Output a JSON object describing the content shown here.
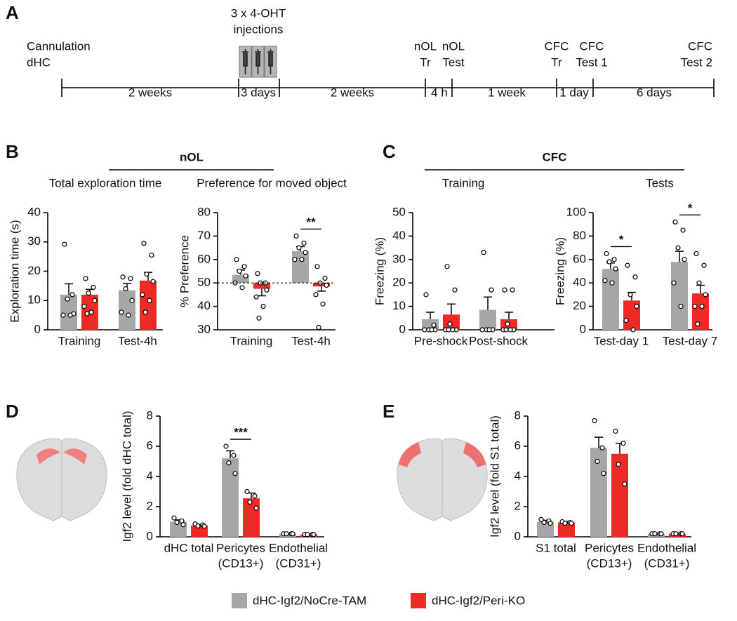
{
  "timeline": {
    "panel": "A",
    "events": [
      [
        "Cannulation",
        "dHC"
      ],
      [
        "3 x 4-OHT",
        "injections"
      ],
      [
        "nOL",
        "Tr"
      ],
      [
        "nOL",
        "Test"
      ],
      [
        "CFC",
        "Tr"
      ],
      [
        "CFC",
        "Test 1"
      ],
      [
        "CFC",
        "Test 2"
      ]
    ],
    "intervals": [
      "2 weeks",
      "3 days",
      "2 weeks",
      "4 h",
      "1 week",
      "1 day",
      "6 days"
    ]
  },
  "legend": [
    {
      "name": "dHC-Igf2/NoCre-TAM",
      "color": "#a6a6a6"
    },
    {
      "name": "dHC-Igf2/Peri-KO",
      "color": "#ee2a24"
    }
  ],
  "chart_data": [
    {
      "type": "bar",
      "panel": "B",
      "group_title": "nOL",
      "title": "Total exploration time",
      "ylabel": "Exploration time (s)",
      "categories": [
        [
          "Training"
        ],
        [
          "Test-4h"
        ]
      ],
      "ylim": [
        0,
        40
      ],
      "yticks": [
        0,
        10,
        20,
        30,
        40
      ],
      "series": [
        {
          "values": [
            12,
            13.5
          ],
          "errors": [
            3.7,
            2.3
          ],
          "points": [
            [
              29.2,
              12,
              10.5,
              5.5,
              5,
              5
            ],
            [
              18,
              17.5,
              14,
              10,
              6,
              5
            ]
          ]
        },
        {
          "values": [
            12,
            16.8
          ],
          "errors": [
            1.8,
            2.8
          ],
          "points": [
            [
              17.5,
              14.5,
              12.5,
              10,
              8,
              6,
              5.5
            ],
            [
              29.5,
              25.5,
              19,
              16.5,
              12,
              10,
              6
            ]
          ]
        }
      ],
      "significance": [
        null,
        null
      ]
    },
    {
      "type": "bar",
      "title": "Preference for moved object",
      "ylabel": "% Preference",
      "categories": [
        [
          "Training"
        ],
        [
          "Test-4h"
        ]
      ],
      "ylim": [
        30,
        80
      ],
      "yticks": [
        30,
        40,
        50,
        60,
        70,
        80
      ],
      "baseline": 50,
      "series": [
        {
          "values": [
            53.5,
            63.5
          ],
          "errors": [
            2,
            2
          ],
          "points": [
            [
              60,
              57,
              55,
              53,
              50,
              48
            ],
            [
              70,
              67,
              65,
              63,
              60,
              60
            ]
          ]
        },
        {
          "values": [
            47.5,
            48.5
          ],
          "errors": [
            3,
            2
          ],
          "points": [
            [
              54,
              50,
              50,
              47,
              44,
              40,
              35
            ],
            [
              57,
              52,
              50,
              49,
              45,
              41,
              31
            ]
          ]
        }
      ],
      "significance": [
        null,
        "**"
      ]
    },
    {
      "type": "bar",
      "panel": "C",
      "group_title": "CFC",
      "title": "Training",
      "ylabel": "Freezing (%)",
      "categories": [
        [
          "Pre-shock"
        ],
        [
          "Post-shock"
        ]
      ],
      "ylim": [
        0,
        50
      ],
      "yticks": [
        0,
        10,
        20,
        30,
        40,
        50
      ],
      "series": [
        {
          "values": [
            4.5,
            8.5
          ],
          "errors": [
            3,
            5.5
          ],
          "points": [
            [
              15,
              2,
              0,
              0,
              0,
              0
            ],
            [
              33,
              17,
              0,
              0,
              0,
              0
            ]
          ]
        },
        {
          "values": [
            6.5,
            4.5
          ],
          "errors": [
            4.5,
            3
          ],
          "points": [
            [
              27,
              17,
              2.5,
              0,
              0,
              0,
              0
            ],
            [
              17,
              17,
              2.5,
              0,
              0,
              0,
              0
            ]
          ]
        }
      ],
      "significance": [
        null,
        null
      ]
    },
    {
      "type": "bar",
      "title": "Tests",
      "ylabel": "Freezing (%)",
      "categories": [
        [
          "Test-day 1"
        ],
        [
          "Test-day 7"
        ]
      ],
      "ylim": [
        0,
        100
      ],
      "yticks": [
        0,
        20,
        40,
        60,
        80,
        100
      ],
      "series": [
        {
          "values": [
            52,
            58
          ],
          "errors": [
            5,
            9
          ],
          "points": [
            [
              65,
              60,
              58,
              52,
              42,
              40
            ],
            [
              92,
              85,
              70,
              60,
              40,
              20
            ]
          ]
        },
        {
          "values": [
            25,
            31
          ],
          "errors": [
            7,
            7
          ],
          "points": [
            [
              55,
              45,
              30,
              20,
              8,
              0
            ],
            [
              65,
              55,
              40,
              30,
              20,
              20,
              5
            ]
          ]
        }
      ],
      "significance": [
        "*",
        "*"
      ]
    },
    {
      "type": "bar",
      "panel": "D",
      "ylabel": "Igf2 level (fold dHC total)",
      "categories": [
        [
          "dHC total"
        ],
        [
          "Pericytes",
          "(CD13+)"
        ],
        [
          "Endothelial",
          "(CD31+)"
        ]
      ],
      "ylim": [
        0,
        8
      ],
      "yticks": [
        0,
        2,
        4,
        6,
        8
      ],
      "series": [
        {
          "values": [
            1.0,
            5.2,
            0.2
          ],
          "errors": [
            0.12,
            0.5,
            0.02
          ],
          "points": [
            [
              1.25,
              1.05,
              0.95,
              0.8
            ],
            [
              6.0,
              5.4,
              4.9,
              4.2
            ],
            [
              0.2,
              0.2,
              0.2,
              0.2
            ]
          ]
        },
        {
          "values": [
            0.75,
            2.55,
            0.15
          ],
          "errors": [
            0.07,
            0.35,
            0.02
          ],
          "points": [
            [
              0.85,
              0.78,
              0.72,
              0.7
            ],
            [
              3.0,
              2.7,
              2.3,
              1.9
            ],
            [
              0.15,
              0.15,
              0.15,
              0.15
            ]
          ]
        }
      ],
      "significance": [
        null,
        "***",
        null
      ]
    },
    {
      "type": "bar",
      "panel": "E",
      "ylabel": "Igf2 level (fold S1 total)",
      "categories": [
        [
          "S1 total"
        ],
        [
          "Pericytes",
          "(CD13+)"
        ],
        [
          "Endothelial",
          "(CD31+)"
        ]
      ],
      "ylim": [
        0,
        8
      ],
      "yticks": [
        0,
        2,
        4,
        6,
        8
      ],
      "series": [
        {
          "values": [
            1.0,
            5.9,
            0.2
          ],
          "errors": [
            0.1,
            0.7,
            0.02
          ],
          "points": [
            [
              1.15,
              1.05,
              0.95,
              0.9
            ],
            [
              7.7,
              5.9,
              5.0,
              4.2
            ],
            [
              0.2,
              0.2,
              0.2,
              0.2
            ]
          ]
        },
        {
          "values": [
            0.95,
            5.5,
            0.2
          ],
          "errors": [
            0.07,
            0.7,
            0.02
          ],
          "points": [
            [
              1.0,
              0.95,
              0.9,
              0.9
            ],
            [
              7.0,
              6.2,
              4.8,
              3.5
            ],
            [
              0.2,
              0.2,
              0.2,
              0.2
            ]
          ]
        }
      ],
      "significance": [
        null,
        null,
        null
      ]
    }
  ]
}
